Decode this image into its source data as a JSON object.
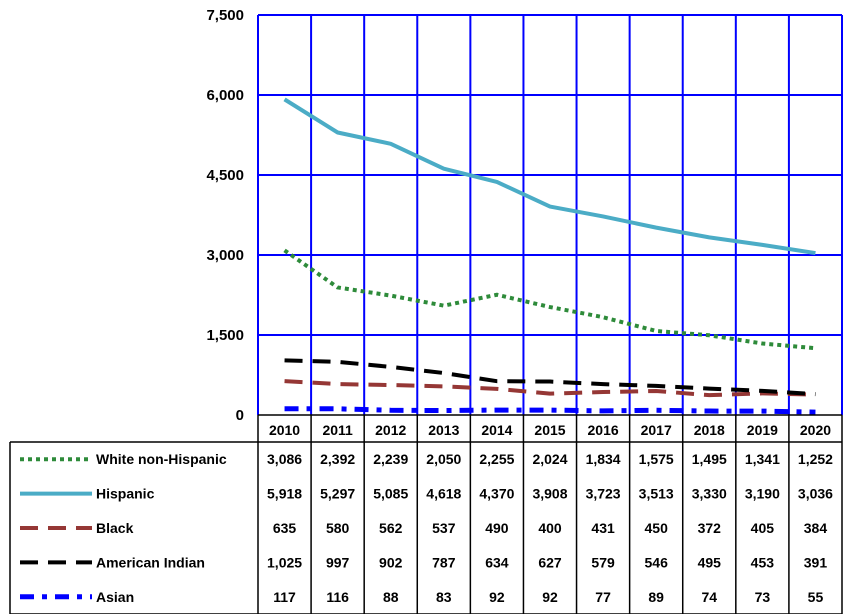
{
  "chart_data": {
    "type": "line",
    "title": "",
    "xlabel": "",
    "ylabel": "",
    "x": [
      "2010",
      "2011",
      "2012",
      "2013",
      "2014",
      "2015",
      "2016",
      "2017",
      "2018",
      "2019",
      "2020"
    ],
    "ylim": [
      0,
      7500
    ],
    "yticks": [
      "0",
      "1,500",
      "3,000",
      "4,500",
      "6,000",
      "7,500"
    ],
    "ytick_values": [
      0,
      1500,
      3000,
      4500,
      6000,
      7500
    ],
    "grid": true,
    "legend": "data-table",
    "series": [
      {
        "name": "White non-Hispanic",
        "color": "#2e8b3a",
        "style": "dotted",
        "values": [
          3086,
          2392,
          2239,
          2050,
          2255,
          2024,
          1834,
          1575,
          1495,
          1341,
          1252
        ],
        "labels": [
          "3,086",
          "2,392",
          "2,239",
          "2,050",
          "2,255",
          "2,024",
          "1,834",
          "1,575",
          "1,495",
          "1,341",
          "1,252"
        ]
      },
      {
        "name": "Hispanic",
        "color": "#4bacc6",
        "style": "solid",
        "values": [
          5918,
          5297,
          5085,
          4618,
          4370,
          3908,
          3723,
          3513,
          3330,
          3190,
          3036
        ],
        "labels": [
          "5,918",
          "5,297",
          "5,085",
          "4,618",
          "4,370",
          "3,908",
          "3,723",
          "3,513",
          "3,330",
          "3,190",
          "3,036"
        ]
      },
      {
        "name": "Black",
        "color": "#953735",
        "style": "dashed",
        "values": [
          635,
          580,
          562,
          537,
          490,
          400,
          431,
          450,
          372,
          405,
          384
        ],
        "labels": [
          "635",
          "580",
          "562",
          "537",
          "490",
          "400",
          "431",
          "450",
          "372",
          "405",
          "384"
        ]
      },
      {
        "name": "American Indian",
        "color": "#000000",
        "style": "dashed",
        "values": [
          1025,
          997,
          902,
          787,
          634,
          627,
          579,
          546,
          495,
          453,
          391
        ],
        "labels": [
          "1,025",
          "997",
          "902",
          "787",
          "634",
          "627",
          "579",
          "546",
          "495",
          "453",
          "391"
        ]
      },
      {
        "name": "Asian",
        "color": "#0000ff",
        "style": "dashdot",
        "values": [
          117,
          116,
          88,
          83,
          92,
          92,
          77,
          89,
          74,
          73,
          55
        ],
        "labels": [
          "117",
          "116",
          "88",
          "83",
          "92",
          "92",
          "77",
          "89",
          "74",
          "73",
          "55"
        ]
      }
    ]
  }
}
